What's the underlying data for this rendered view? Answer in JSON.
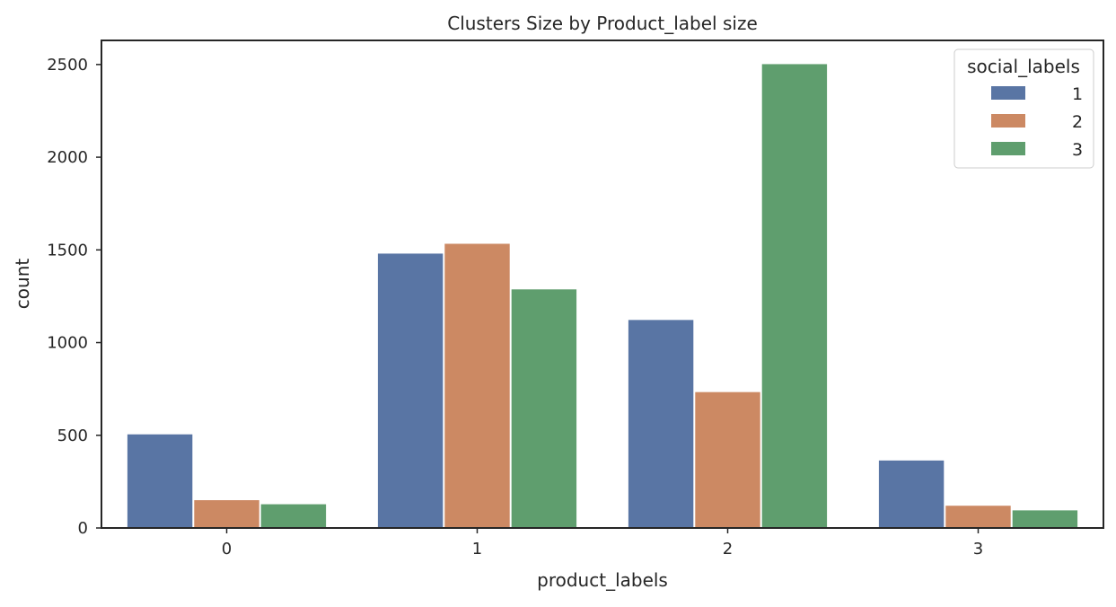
{
  "chart_data": {
    "type": "bar",
    "title": "Clusters Size by Product_label size",
    "xlabel": "product_labels",
    "ylabel": "count",
    "categories": [
      "0",
      "1",
      "2",
      "3"
    ],
    "ylim": [
      0,
      2630
    ],
    "yticks": [
      0,
      500,
      1000,
      1500,
      2000,
      2500
    ],
    "grid": false,
    "legend": {
      "title": "social_labels",
      "position": "upper-right"
    },
    "series": [
      {
        "name": "1",
        "color": "#5975a4",
        "values": [
          505,
          1480,
          1122,
          364
        ]
      },
      {
        "name": "2",
        "color": "#cc8963",
        "values": [
          150,
          1533,
          733,
          120
        ]
      },
      {
        "name": "3",
        "color": "#5f9e6e",
        "values": [
          128,
          1287,
          2502,
          95
        ]
      }
    ]
  }
}
